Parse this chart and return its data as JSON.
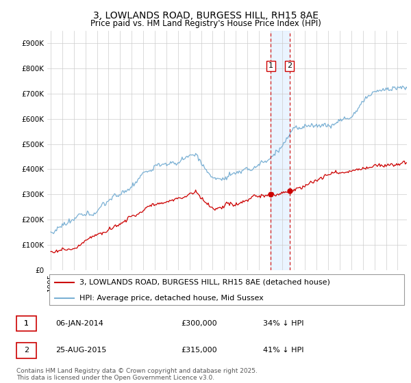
{
  "title": "3, LOWLANDS ROAD, BURGESS HILL, RH15 8AE",
  "subtitle": "Price paid vs. HM Land Registry's House Price Index (HPI)",
  "ylim": [
    0,
    950000
  ],
  "yticks": [
    0,
    100000,
    200000,
    300000,
    400000,
    500000,
    600000,
    700000,
    800000,
    900000
  ],
  "ytick_labels": [
    "£0",
    "£100K",
    "£200K",
    "£300K",
    "£400K",
    "£500K",
    "£600K",
    "£700K",
    "£800K",
    "£900K"
  ],
  "line_red_color": "#cc0000",
  "line_blue_color": "#7ab0d4",
  "dot_color": "#cc0000",
  "vline1_color": "#cc0000",
  "vline2_color": "#cc0000",
  "shading_color": "#ddeeff",
  "sale1_year": 2014.03,
  "sale2_year": 2015.65,
  "sale1_price": 300000,
  "sale2_price": 315000,
  "sale1_label": "1",
  "sale2_label": "2",
  "sale1_date": "06-JAN-2014",
  "sale2_date": "25-AUG-2015",
  "sale1_hpi": "34% ↓ HPI",
  "sale2_hpi": "41% ↓ HPI",
  "legend_line1": "3, LOWLANDS ROAD, BURGESS HILL, RH15 8AE (detached house)",
  "legend_line2": "HPI: Average price, detached house, Mid Sussex",
  "footer": "Contains HM Land Registry data © Crown copyright and database right 2025.\nThis data is licensed under the Open Government Licence v3.0.",
  "background_color": "#ffffff",
  "grid_color": "#cccccc",
  "title_fontsize": 10,
  "subtitle_fontsize": 8.5,
  "tick_fontsize": 7.5,
  "legend_fontsize": 8,
  "table_fontsize": 8,
  "footer_fontsize": 6.5,
  "xmin": 1994.7,
  "xmax": 2025.8
}
